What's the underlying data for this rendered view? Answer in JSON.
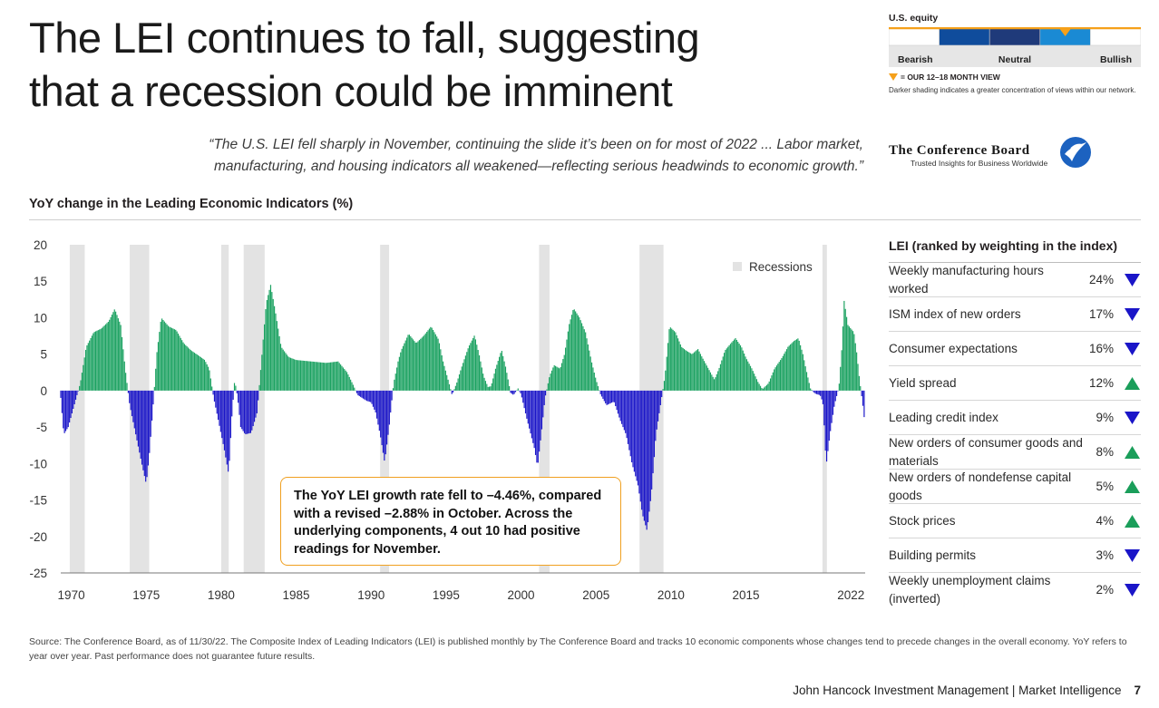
{
  "title": "The LEI continues to fall, suggesting that a recession could be imminent",
  "quote": "“The U.S. LEI fell sharply in November, continuing the slide it’s been on for most of 2022 ... Labor market, manufacturing, and housing indicators all weakened—reflecting serious headwinds to economic growth.”",
  "equity_view": {
    "label": "U.S. equity",
    "scale": [
      "Bearish",
      "Neutral",
      "Bullish"
    ],
    "marker_label": "= OUR 12–18 MONTH VIEW",
    "note": "Darker shading indicates a greater concentration of views within our network.",
    "segment_colors": [
      "#ffffff",
      "#0f4c9c",
      "#1f3a7a",
      "#1a8ad4",
      "#ffffff"
    ],
    "marker_segment": 3,
    "accent": "#f5a01a"
  },
  "source_logo": {
    "name": "The Conference Board",
    "tagline": "Trusted Insights for Business Worldwide"
  },
  "chart_title": "YoY change in the Leading Economic Indicators (%)",
  "callout": "The YoY LEI growth rate fell to –4.46%, compared with a revised –2.88% in October. Across the underlying components, 4 out 10 had positive readings for November.",
  "chart_data": {
    "type": "bar",
    "title": "YoY change in the Leading Economic Indicators (%)",
    "xlabel": "",
    "ylabel": "",
    "ylim": [
      -25,
      20
    ],
    "xlim": [
      1969.3,
      2022.95
    ],
    "x_ticks": [
      1970,
      1975,
      1980,
      1985,
      1990,
      1995,
      2000,
      2005,
      2010,
      2015,
      2022
    ],
    "y_ticks": [
      20,
      15,
      10,
      5,
      0,
      -5,
      -10,
      -15,
      -20,
      -25
    ],
    "positive_color": "#1aa160",
    "negative_color": "#1a15c8",
    "recession_color": "#e3e3e3",
    "legend": [
      {
        "label": "Recessions",
        "position": "top-right"
      }
    ],
    "recessions": [
      [
        1969.9,
        1970.9
      ],
      [
        1973.9,
        1975.2
      ],
      [
        1980.0,
        1980.5
      ],
      [
        1981.5,
        1982.9
      ],
      [
        1990.6,
        1991.2
      ],
      [
        2001.2,
        2001.9
      ],
      [
        2007.9,
        2009.5
      ],
      [
        2020.1,
        2020.4
      ]
    ],
    "series": [
      {
        "anchors": [
          [
            1969.3,
            -1
          ],
          [
            1969.5,
            -6
          ],
          [
            1969.8,
            -5
          ],
          [
            1970.2,
            -2
          ],
          [
            1970.6,
            1
          ],
          [
            1971.0,
            6
          ],
          [
            1971.5,
            8
          ],
          [
            1972.0,
            8.5
          ],
          [
            1972.5,
            9.5
          ],
          [
            1972.9,
            11.2
          ],
          [
            1973.3,
            9
          ],
          [
            1973.6,
            3
          ],
          [
            1973.9,
            -2
          ],
          [
            1974.3,
            -6
          ],
          [
            1974.7,
            -10
          ],
          [
            1975.0,
            -12.8
          ],
          [
            1975.2,
            -9
          ],
          [
            1975.5,
            -1
          ],
          [
            1975.7,
            5
          ],
          [
            1976.0,
            10
          ],
          [
            1976.5,
            8.8
          ],
          [
            1977.0,
            8.3
          ],
          [
            1977.5,
            6.5
          ],
          [
            1978.0,
            5.5
          ],
          [
            1978.5,
            4.8
          ],
          [
            1978.9,
            4.2
          ],
          [
            1979.2,
            3
          ],
          [
            1979.5,
            -1
          ],
          [
            1979.8,
            -4
          ],
          [
            1980.2,
            -8
          ],
          [
            1980.5,
            -11.5
          ],
          [
            1980.7,
            -4
          ],
          [
            1980.9,
            1.5
          ],
          [
            1981.1,
            -1
          ],
          [
            1981.3,
            -5
          ],
          [
            1981.6,
            -6
          ],
          [
            1982.0,
            -5.8
          ],
          [
            1982.4,
            -3
          ],
          [
            1982.6,
            2
          ],
          [
            1983.0,
            12
          ],
          [
            1983.3,
            14.5
          ],
          [
            1983.6,
            11
          ],
          [
            1984.0,
            6
          ],
          [
            1984.5,
            4.6
          ],
          [
            1985.0,
            4.2
          ],
          [
            1986.0,
            4.0
          ],
          [
            1987.0,
            3.8
          ],
          [
            1987.8,
            4
          ],
          [
            1988.4,
            2.5
          ],
          [
            1988.8,
            0.8
          ],
          [
            1989.1,
            -0.6
          ],
          [
            1989.7,
            -1.4
          ],
          [
            1990.0,
            -1.6
          ],
          [
            1990.3,
            -3
          ],
          [
            1990.6,
            -6
          ],
          [
            1990.9,
            -9.8
          ],
          [
            1991.2,
            -5
          ],
          [
            1991.5,
            1
          ],
          [
            1991.8,
            4
          ],
          [
            1992.0,
            5.5
          ],
          [
            1992.5,
            7.8
          ],
          [
            1993.0,
            6.5
          ],
          [
            1993.5,
            7.5
          ],
          [
            1994.0,
            8.8
          ],
          [
            1994.5,
            7
          ],
          [
            1994.8,
            4
          ],
          [
            1995.2,
            1
          ],
          [
            1995.4,
            -0.6
          ],
          [
            1995.7,
            1
          ],
          [
            1996.0,
            3
          ],
          [
            1996.5,
            6
          ],
          [
            1996.9,
            7.6
          ],
          [
            1997.2,
            5
          ],
          [
            1997.5,
            2
          ],
          [
            1997.8,
            0.5
          ],
          [
            1998.0,
            0.6
          ],
          [
            1998.3,
            3
          ],
          [
            1998.7,
            5.6
          ],
          [
            1999.0,
            3
          ],
          [
            1999.3,
            -0.3
          ],
          [
            1999.5,
            -0.6
          ],
          [
            1999.8,
            0.3
          ],
          [
            2000.0,
            -0.5
          ],
          [
            2000.4,
            -4
          ],
          [
            2000.9,
            -8
          ],
          [
            2001.1,
            -10.5
          ],
          [
            2001.4,
            -5
          ],
          [
            2001.6,
            -1
          ],
          [
            2001.9,
            2
          ],
          [
            2002.2,
            3.5
          ],
          [
            2002.6,
            3
          ],
          [
            2002.9,
            5
          ],
          [
            2003.2,
            9
          ],
          [
            2003.5,
            11.3
          ],
          [
            2003.9,
            10
          ],
          [
            2004.3,
            8
          ],
          [
            2004.7,
            4
          ],
          [
            2005.0,
            1.5
          ],
          [
            2005.3,
            -0.5
          ],
          [
            2005.7,
            -2
          ],
          [
            2006.2,
            -1.5
          ],
          [
            2006.6,
            -4
          ],
          [
            2007.0,
            -6
          ],
          [
            2007.4,
            -10
          ],
          [
            2007.8,
            -13
          ],
          [
            2008.1,
            -17
          ],
          [
            2008.4,
            -19.2
          ],
          [
            2008.7,
            -14
          ],
          [
            2009.0,
            -6
          ],
          [
            2009.3,
            -2
          ],
          [
            2009.6,
            2
          ],
          [
            2009.9,
            8.8
          ],
          [
            2010.3,
            8
          ],
          [
            2010.7,
            6
          ],
          [
            2011.0,
            5.5
          ],
          [
            2011.4,
            5
          ],
          [
            2011.8,
            5.7
          ],
          [
            2012.1,
            4.5
          ],
          [
            2012.5,
            3
          ],
          [
            2012.9,
            1.5
          ],
          [
            2013.2,
            3
          ],
          [
            2013.6,
            5.5
          ],
          [
            2014.0,
            6.5
          ],
          [
            2014.3,
            7.2
          ],
          [
            2014.7,
            6
          ],
          [
            2015.0,
            4.5
          ],
          [
            2015.4,
            3
          ],
          [
            2015.8,
            1.2
          ],
          [
            2016.1,
            0.2
          ],
          [
            2016.5,
            1
          ],
          [
            2016.9,
            3
          ],
          [
            2017.4,
            4.5
          ],
          [
            2017.8,
            6
          ],
          [
            2018.2,
            6.8
          ],
          [
            2018.5,
            7.2
          ],
          [
            2018.8,
            5
          ],
          [
            2019.0,
            3
          ],
          [
            2019.3,
            0.3
          ],
          [
            2019.6,
            -0.4
          ],
          [
            2019.9,
            -0.6
          ],
          [
            2020.0,
            -0.8
          ],
          [
            2020.15,
            -2
          ],
          [
            2020.35,
            -10.3
          ],
          [
            2020.6,
            -6
          ],
          [
            2020.9,
            -2
          ],
          [
            2021.2,
            0.5
          ],
          [
            2021.4,
            6
          ],
          [
            2021.55,
            12.3
          ],
          [
            2021.8,
            9
          ],
          [
            2022.2,
            8
          ],
          [
            2022.4,
            5
          ],
          [
            2022.55,
            2
          ],
          [
            2022.7,
            -0.5
          ],
          [
            2022.85,
            -2.88
          ],
          [
            2022.92,
            -4.46
          ]
        ]
      }
    ]
  },
  "table": {
    "header": "LEI (ranked by weighting in the index)",
    "rows": [
      {
        "name": "Weekly manufacturing hours worked",
        "weight": "24%",
        "direction": "down"
      },
      {
        "name": "ISM index of new orders",
        "weight": "17%",
        "direction": "down"
      },
      {
        "name": "Consumer expectations",
        "weight": "16%",
        "direction": "down"
      },
      {
        "name": "Yield spread",
        "weight": "12%",
        "direction": "up"
      },
      {
        "name": "Leading credit index",
        "weight": "9%",
        "direction": "down"
      },
      {
        "name": "New orders of consumer goods and materials",
        "weight": "8%",
        "direction": "up"
      },
      {
        "name": "New orders of nondefense capital goods",
        "weight": "5%",
        "direction": "up"
      },
      {
        "name": "Stock prices",
        "weight": "4%",
        "direction": "up"
      },
      {
        "name": "Building permits",
        "weight": "3%",
        "direction": "down"
      },
      {
        "name": "Weekly unemployment claims (inverted)",
        "weight": "2%",
        "direction": "down"
      }
    ],
    "up_color": "#1a9e5a",
    "down_color": "#1a15c8"
  },
  "source_note": "Source: The Conference Board, as of 11/30/22. The Composite Index of Leading Indicators (LEI) is published monthly by The Conference Board and tracks 10 economic components whose changes tend to precede changes in the overall economy. YoY refers to year over year. Past performance does not guarantee future results.",
  "footer": {
    "text": "John Hancock Investment Management | Market Intelligence",
    "page": "7"
  }
}
